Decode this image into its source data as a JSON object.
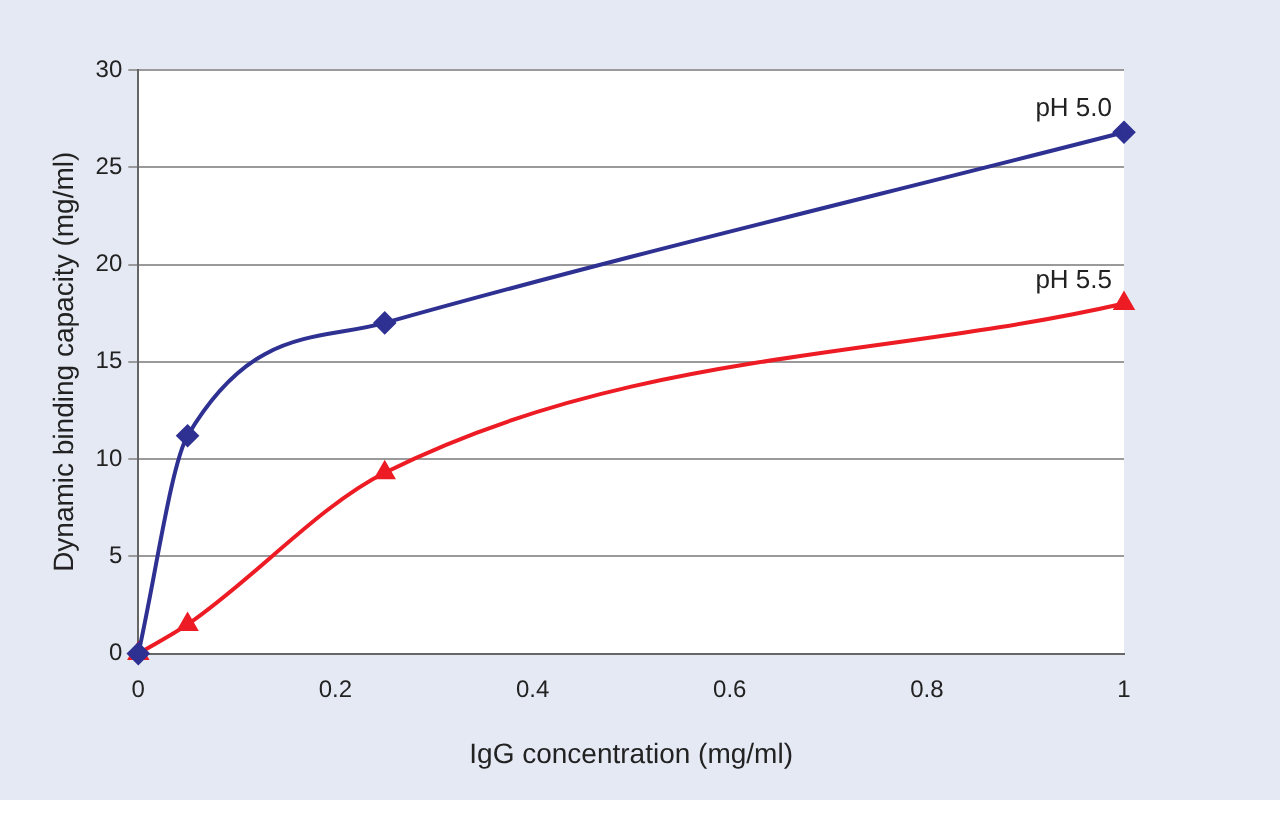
{
  "chart_data": {
    "type": "line",
    "xlabel": "IgG concentration (mg/ml)",
    "ylabel": "Dynamic binding capacity (mg/ml)",
    "xlim": [
      0,
      1
    ],
    "ylim": [
      0,
      30
    ],
    "xticks": [
      0,
      0.2,
      0.4,
      0.6,
      0.8,
      1
    ],
    "yticks": [
      0,
      5,
      10,
      15,
      20,
      25,
      30
    ],
    "grid": "y",
    "legend": false,
    "series": [
      {
        "name": "pH 5.0",
        "color": "#2e3192",
        "marker": "diamond",
        "x": [
          0,
          0.05,
          0.25,
          1
        ],
        "values": [
          0,
          11.2,
          17,
          26.8
        ]
      },
      {
        "name": "pH 5.5",
        "color": "#ed1c24",
        "marker": "triangle",
        "x": [
          0,
          0.05,
          0.25,
          1
        ],
        "values": [
          0,
          1.5,
          9.3,
          18
        ]
      }
    ]
  }
}
